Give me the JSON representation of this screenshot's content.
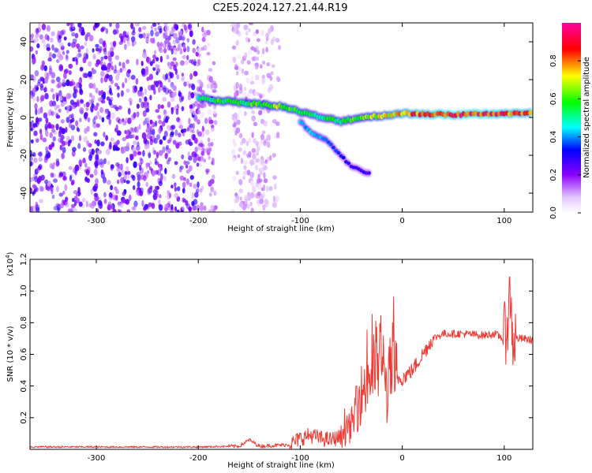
{
  "title": "C2E5.2024.127.21.44.R19",
  "chart_data": [
    {
      "type": "heatmap",
      "name": "spectrogram",
      "xlabel": "Height of straight line (km)",
      "ylabel": "Frequency (Hz)",
      "xlim": [
        -365,
        128
      ],
      "ylim": [
        -50,
        50
      ],
      "xticks": [
        -300,
        -200,
        -100,
        0,
        100
      ],
      "xtick_labels": [
        "-300",
        "-200",
        "-100",
        "0",
        "100"
      ],
      "yticks": [
        -40,
        -20,
        0,
        20,
        40
      ],
      "ytick_labels": [
        "-40",
        "-20",
        "0",
        "20",
        "40"
      ],
      "colorbar": {
        "label": "Normalized spectral amplitude",
        "range": [
          0.0,
          1.0
        ],
        "ticks": [
          0.0,
          0.2,
          0.4,
          0.6,
          0.8
        ],
        "tick_labels": [
          "0.0",
          "0.2",
          "0.4",
          "0.6",
          "0.8"
        ],
        "colormap": [
          "#ffffff",
          "#8b00ff",
          "#0000ff",
          "#00ffff",
          "#00ff00",
          "#ffff00",
          "#ff0000",
          "#ff00a0"
        ]
      },
      "main_band": [
        {
          "x": -200,
          "y": 10,
          "amp": 0.5
        },
        {
          "x": -180,
          "y": 9,
          "amp": 0.6
        },
        {
          "x": -160,
          "y": 8,
          "amp": 0.55
        },
        {
          "x": -140,
          "y": 7,
          "amp": 0.6
        },
        {
          "x": -120,
          "y": 6,
          "amp": 0.65
        },
        {
          "x": -100,
          "y": 3,
          "amp": 0.55
        },
        {
          "x": -80,
          "y": 0,
          "amp": 0.5
        },
        {
          "x": -60,
          "y": -2,
          "amp": 0.55
        },
        {
          "x": -40,
          "y": 0,
          "amp": 0.6
        },
        {
          "x": -20,
          "y": 1,
          "amp": 0.7
        },
        {
          "x": 0,
          "y": 2,
          "amp": 0.8
        },
        {
          "x": 20,
          "y": 2,
          "amp": 0.85
        },
        {
          "x": 40,
          "y": 1.5,
          "amp": 0.9
        },
        {
          "x": 60,
          "y": 1.5,
          "amp": 0.9
        },
        {
          "x": 80,
          "y": 2,
          "amp": 0.9
        },
        {
          "x": 100,
          "y": 2,
          "amp": 0.85
        },
        {
          "x": 128,
          "y": 2,
          "amp": 0.85
        }
      ],
      "tail_branch": [
        {
          "x": -100,
          "y": -2,
          "amp": 0.4
        },
        {
          "x": -90,
          "y": -8,
          "amp": 0.45
        },
        {
          "x": -75,
          "y": -12,
          "amp": 0.4
        },
        {
          "x": -50,
          "y": -26,
          "amp": 0.25
        },
        {
          "x": -30,
          "y": -30,
          "amp": 0.25
        }
      ],
      "noise_region": {
        "x": [
          -365,
          -120
        ],
        "y": [
          -50,
          50
        ],
        "amp": 0.25
      }
    },
    {
      "type": "line",
      "name": "snr",
      "xlabel": "Height of straight line (km)",
      "ylabel": "SNR (10 * v/v)",
      "y_multiplier": "(x10",
      "y_multiplier_exp": "4",
      "y_multiplier_close": ")",
      "xlim": [
        -365,
        128
      ],
      "ylim": [
        0,
        12000
      ],
      "xticks": [
        -300,
        -200,
        -100,
        0,
        100
      ],
      "xtick_labels": [
        "-300",
        "-200",
        "-100",
        "0",
        "100"
      ],
      "yticks": [
        2000,
        4000,
        6000,
        8000,
        10000,
        12000
      ],
      "ytick_labels": [
        "0.2",
        "0.4",
        "0.6",
        "0.8",
        "1.0",
        "1.2"
      ],
      "color": "#ee3a33",
      "series": [
        {
          "x": [
            -365,
            -300,
            -200,
            -160,
            -150,
            -140,
            -110,
            -100,
            -90,
            -80,
            -70,
            -60,
            -50,
            -40,
            -30,
            -20,
            -15,
            -10,
            -5,
            0,
            10,
            20,
            30,
            40,
            60,
            80,
            90,
            100,
            104,
            106,
            108,
            115,
            128
          ],
          "y": [
            150,
            150,
            150,
            200,
            600,
            200,
            300,
            700,
            900,
            700,
            600,
            800,
            1500,
            3500,
            5000,
            6000,
            3500,
            5500,
            4500,
            4500,
            5000,
            6000,
            7000,
            7300,
            7300,
            7200,
            7300,
            7000,
            8500,
            10000,
            7000,
            7000,
            6900
          ]
        }
      ]
    }
  ]
}
